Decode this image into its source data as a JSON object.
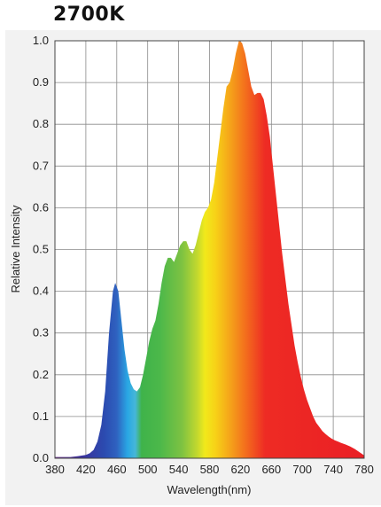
{
  "chart_data": {
    "type": "area",
    "title": "2700K",
    "xlabel": "Wavelength(nm)",
    "ylabel": "Relative Intensity",
    "xlim": [
      380,
      780
    ],
    "ylim": [
      0,
      1.0
    ],
    "xticks": [
      "380",
      "420",
      "460",
      "500",
      "540",
      "580",
      "620",
      "660",
      "700",
      "740",
      "780"
    ],
    "yticks": [
      "0.0",
      "0.1",
      "0.2",
      "0.3",
      "0.4",
      "0.5",
      "0.6",
      "0.7",
      "0.8",
      "0.9",
      "1.0"
    ],
    "grid": true,
    "series": [
      {
        "x": [
          380,
          400,
          410,
          420,
          425,
          430,
          435,
          440,
          445,
          450,
          455,
          458,
          462,
          466,
          470,
          474,
          478,
          482,
          486,
          490,
          494,
          498,
          502,
          506,
          510,
          514,
          518,
          522,
          526,
          530,
          534,
          538,
          542,
          546,
          550,
          554,
          558,
          562,
          566,
          570,
          574,
          578,
          582,
          586,
          590,
          594,
          598,
          602,
          606,
          610,
          614,
          618,
          622,
          626,
          630,
          634,
          638,
          642,
          646,
          650,
          654,
          658,
          662,
          666,
          670,
          674,
          678,
          682,
          686,
          690,
          694,
          698,
          702,
          706,
          710,
          714,
          718,
          722,
          726,
          730,
          734,
          738,
          742,
          746,
          750,
          756,
          762,
          768,
          772,
          776,
          780
        ],
        "y": [
          0.003,
          0.003,
          0.005,
          0.008,
          0.012,
          0.02,
          0.04,
          0.08,
          0.16,
          0.3,
          0.4,
          0.42,
          0.4,
          0.33,
          0.26,
          0.21,
          0.18,
          0.165,
          0.16,
          0.17,
          0.2,
          0.24,
          0.28,
          0.31,
          0.33,
          0.37,
          0.42,
          0.46,
          0.48,
          0.48,
          0.47,
          0.49,
          0.51,
          0.52,
          0.52,
          0.5,
          0.49,
          0.51,
          0.54,
          0.57,
          0.59,
          0.6,
          0.62,
          0.66,
          0.72,
          0.78,
          0.84,
          0.89,
          0.9,
          0.93,
          0.97,
          1.0,
          0.995,
          0.97,
          0.93,
          0.89,
          0.87,
          0.875,
          0.875,
          0.86,
          0.82,
          0.77,
          0.7,
          0.63,
          0.56,
          0.49,
          0.43,
          0.37,
          0.32,
          0.27,
          0.23,
          0.195,
          0.165,
          0.14,
          0.12,
          0.1,
          0.085,
          0.075,
          0.065,
          0.058,
          0.052,
          0.047,
          0.043,
          0.04,
          0.037,
          0.033,
          0.028,
          0.022,
          0.017,
          0.012,
          0.007
        ]
      }
    ]
  }
}
